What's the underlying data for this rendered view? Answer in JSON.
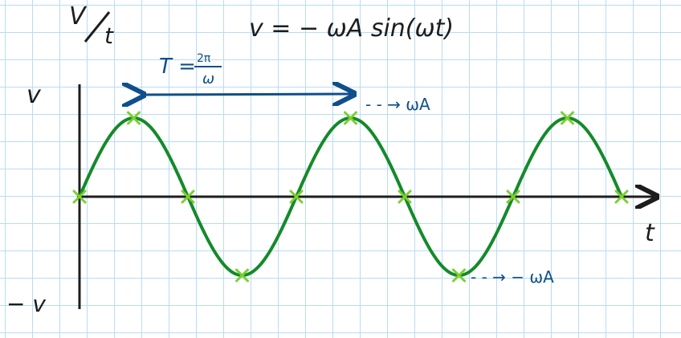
{
  "title": {
    "plot_label_top": "V",
    "plot_label_bottom": "t",
    "equation": "v = − ωA sin(ωt)"
  },
  "period": {
    "lhs": "T =",
    "numerator": "2π",
    "denominator": "ω"
  },
  "axes": {
    "y_top_label": "v",
    "y_bottom_label": "− v",
    "x_label": "t"
  },
  "annotations": {
    "max_label": "- - → ωA",
    "min_label": "- - → − ωA"
  },
  "colors": {
    "curve": "#148a2a",
    "markers": "#7ad02e",
    "arrow": "#0f4f8c",
    "axis": "#1d1d1d",
    "grid": "#b9dcf3"
  },
  "chart_data": {
    "type": "line",
    "function": "v = -ωA sin(ωt)",
    "x": [
      0,
      0.25,
      0.5,
      0.75,
      1,
      1.25,
      1.5,
      1.75,
      2,
      2.25,
      2.5
    ],
    "values": [
      0,
      1,
      0,
      -1,
      0,
      1,
      0,
      -1,
      0,
      1,
      0
    ],
    "markers": [
      0,
      0.25,
      0.5,
      0.75,
      1,
      1.25,
      1.5,
      1.75,
      2,
      2.25,
      2.5
    ],
    "grid": true
  }
}
